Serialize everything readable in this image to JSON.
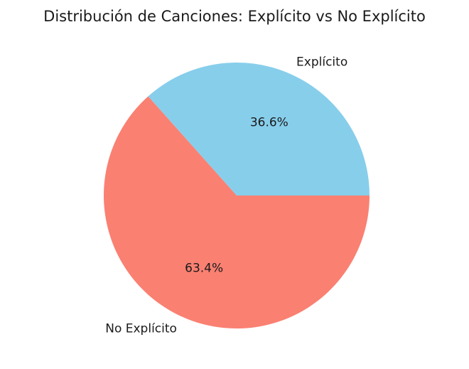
{
  "chart_data": {
    "type": "pie",
    "title": "Distribución de Canciones: Explícito vs No Explícito",
    "slices": [
      {
        "label": "Explícito",
        "value": 36.6,
        "pct_label": "36.6%",
        "color": "#87CEEB"
      },
      {
        "label": "No Explícito",
        "value": 63.4,
        "pct_label": "63.4%",
        "color": "#FA8072"
      }
    ],
    "start_angle_deg": 0,
    "direction": "counterclockwise"
  }
}
